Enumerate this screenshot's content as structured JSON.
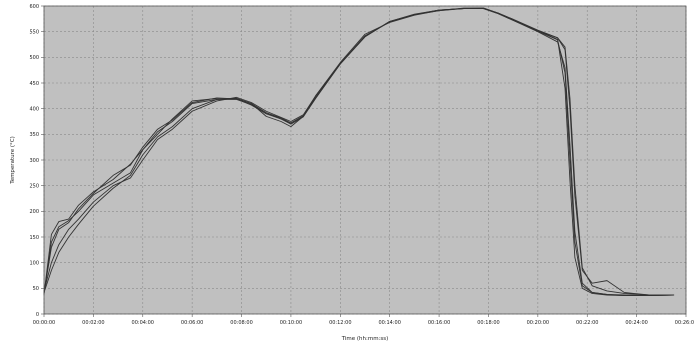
{
  "chart_data": {
    "type": "line",
    "title": "",
    "xlabel": "Time (hh:mm:ss)",
    "ylabel": "Temperature (°C)",
    "x_unit": "minutes",
    "xlim": [
      0,
      26
    ],
    "ylim": [
      0,
      600
    ],
    "x_ticks": [
      {
        "value": 0,
        "label": "00:00:00"
      },
      {
        "value": 2,
        "label": "00:02:00"
      },
      {
        "value": 4,
        "label": "00:04:00"
      },
      {
        "value": 6,
        "label": "00:06:00"
      },
      {
        "value": 8,
        "label": "00:08:00"
      },
      {
        "value": 10,
        "label": "00:10:00"
      },
      {
        "value": 12,
        "label": "00:12:00"
      },
      {
        "value": 14,
        "label": "00:14:00"
      },
      {
        "value": 16,
        "label": "00:16:00"
      },
      {
        "value": 18,
        "label": "00:18:00"
      },
      {
        "value": 20,
        "label": "00:20:00"
      },
      {
        "value": 22,
        "label": "00:22:00"
      },
      {
        "value": 24,
        "label": "00:24:00"
      },
      {
        "value": 26,
        "label": "00:26:00"
      }
    ],
    "y_ticks": [
      0,
      50,
      100,
      150,
      200,
      250,
      300,
      350,
      400,
      450,
      500,
      550,
      600
    ],
    "grid": true,
    "legend": "none",
    "colors": {
      "background": "#c0c0c0",
      "grid": "#8a8a8a",
      "line": "#333333"
    },
    "series": [
      {
        "x": [
          0,
          0.3,
          0.6,
          1,
          1.4,
          2,
          2.8,
          3.5,
          4,
          4.6,
          5.2,
          6,
          7,
          7.8,
          8.4,
          9,
          9.6,
          10,
          10.5,
          11,
          12,
          13,
          14,
          15,
          16,
          17,
          17.8,
          18.4,
          19,
          20,
          20.8,
          21.1,
          21.3,
          21.5,
          21.8,
          22.2,
          22.8,
          23.5,
          24.5,
          25.5
        ],
        "y": [
          40,
          140,
          170,
          182,
          200,
          232,
          255,
          275,
          320,
          355,
          375,
          410,
          418,
          418,
          408,
          392,
          382,
          372,
          385,
          420,
          488,
          540,
          570,
          583,
          592,
          595,
          595,
          585,
          572,
          550,
          530,
          480,
          330,
          160,
          60,
          42,
          38,
          37,
          36,
          37
        ]
      },
      {
        "x": [
          0,
          0.3,
          0.6,
          1,
          1.4,
          2,
          2.8,
          3.5,
          4,
          4.6,
          5.2,
          6,
          7,
          7.8,
          8.4,
          9,
          9.6,
          10,
          10.5,
          11,
          12,
          13,
          14,
          15,
          16,
          17,
          17.8,
          18.4,
          19,
          20,
          20.8,
          21.1,
          21.3,
          21.5,
          21.8,
          22.2,
          22.8,
          23.5,
          24.5,
          25.5
        ],
        "y": [
          38,
          155,
          180,
          185,
          212,
          238,
          262,
          292,
          320,
          350,
          380,
          415,
          420,
          420,
          410,
          385,
          375,
          365,
          385,
          425,
          490,
          545,
          568,
          582,
          591,
          596,
          596,
          586,
          574,
          552,
          535,
          440,
          260,
          110,
          50,
          40,
          37,
          36,
          36,
          37
        ]
      },
      {
        "x": [
          0,
          0.3,
          0.6,
          1,
          1.4,
          2,
          2.8,
          3.5,
          4,
          4.6,
          5.2,
          6,
          7,
          7.8,
          8.4,
          9,
          9.6,
          10,
          10.5,
          11,
          12,
          13,
          14,
          15,
          16,
          17,
          17.8,
          18.4,
          19,
          20,
          20.8,
          21.1,
          21.3,
          21.5,
          21.8,
          22.2,
          22.8,
          23.5,
          24.5,
          25.5
        ],
        "y": [
          45,
          100,
          135,
          165,
          185,
          218,
          250,
          265,
          300,
          340,
          360,
          395,
          415,
          422,
          412,
          395,
          383,
          375,
          388,
          425,
          487,
          540,
          570,
          584,
          592,
          595,
          595,
          586,
          573,
          552,
          538,
          520,
          420,
          250,
          90,
          55,
          45,
          40,
          37,
          37
        ]
      },
      {
        "x": [
          0,
          0.3,
          0.6,
          1,
          1.4,
          2,
          2.8,
          3.5,
          4,
          4.6,
          5.2,
          6,
          7,
          7.8,
          8.4,
          9,
          9.6,
          10,
          10.5,
          11,
          12,
          13,
          14,
          15,
          16,
          17,
          17.8,
          18.4,
          19,
          20,
          20.8,
          21.1,
          21.3,
          21.5,
          21.8,
          22.2,
          22.8,
          23.5,
          24.5,
          25.5
        ],
        "y": [
          42,
          85,
          120,
          150,
          175,
          210,
          245,
          270,
          310,
          345,
          365,
          400,
          418,
          420,
          410,
          392,
          380,
          372,
          386,
          422,
          488,
          542,
          569,
          583,
          592,
          595,
          596,
          586,
          574,
          553,
          538,
          515,
          400,
          230,
          85,
          60,
          65,
          42,
          37,
          37
        ]
      },
      {
        "x": [
          0,
          0.3,
          0.6,
          1,
          1.4,
          2,
          2.8,
          3.5,
          4,
          4.6,
          5.2,
          6,
          7,
          7.8,
          8.4,
          9,
          9.6,
          10,
          10.5,
          11,
          12,
          13,
          14,
          15,
          16,
          17,
          17.8,
          18.4,
          19,
          20,
          20.8,
          21.1,
          21.3,
          21.5,
          21.8,
          22.2,
          22.8,
          23.5,
          24.5,
          25.5
        ],
        "y": [
          40,
          130,
          165,
          178,
          205,
          235,
          270,
          290,
          325,
          360,
          378,
          412,
          421,
          419,
          407,
          390,
          380,
          370,
          384,
          420,
          487,
          541,
          569,
          583,
          591,
          595,
          595,
          585,
          572,
          551,
          534,
          470,
          300,
          140,
          55,
          42,
          38,
          36,
          36,
          37
        ]
      }
    ]
  }
}
